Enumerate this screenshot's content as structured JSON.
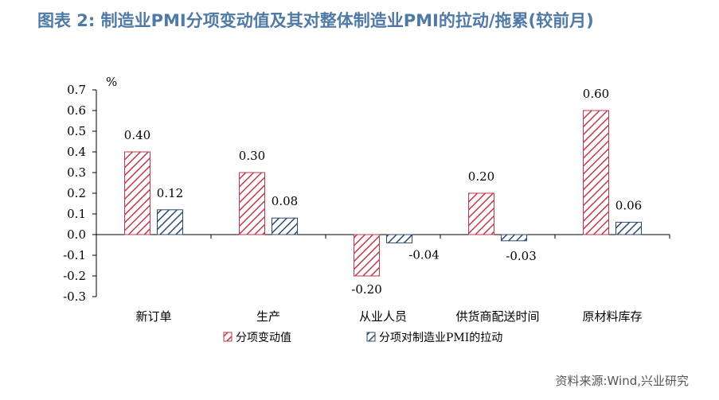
{
  "title": "图表 2:  制造业PMI分项变动值及其对整体制造业PMI的拉动/拖累(较前月)",
  "source": "资料来源:Wind,兴业研究",
  "colors": {
    "title": "#4f7aa6",
    "series1": "#c0394b",
    "series2": "#2e4a6b"
  },
  "chart_data": {
    "type": "bar",
    "unit": "%",
    "categories": [
      "新订单",
      "生产",
      "从业人员",
      "供货商配送时间",
      "原材料库存"
    ],
    "series": [
      {
        "name": "分项变动值",
        "values": [
          0.4,
          0.3,
          -0.2,
          0.2,
          0.6
        ],
        "labels": [
          "0.40",
          "0.30",
          "-0.20",
          "0.20",
          "0.60"
        ]
      },
      {
        "name": "分项对制造业PMI的拉动",
        "values": [
          0.12,
          0.08,
          -0.04,
          -0.03,
          0.06
        ],
        "labels": [
          "0.12",
          "0.08",
          "-0.04",
          "-0.03",
          "0.06"
        ]
      }
    ],
    "yticks": [
      "0.7",
      "0.6",
      "0.5",
      "0.4",
      "0.3",
      "0.2",
      "0.1",
      "0.0",
      "-0.1",
      "-0.2",
      "-0.3"
    ],
    "ylim": [
      -0.3,
      0.7
    ],
    "legend": "bottom",
    "grid": false
  }
}
